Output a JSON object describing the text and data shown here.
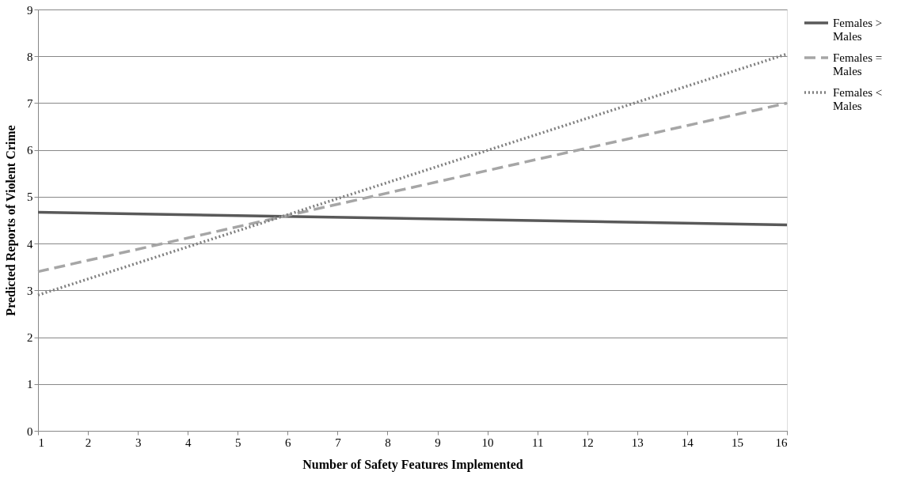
{
  "chart_data": {
    "type": "line",
    "xlabel": "Number of Safety Features Implemented",
    "ylabel": "Predicted Reports of Violent Crime",
    "x": [
      1,
      16
    ],
    "xlim": [
      1,
      16
    ],
    "xticks": [
      1,
      2,
      3,
      4,
      5,
      6,
      7,
      8,
      9,
      10,
      11,
      12,
      13,
      14,
      15,
      16
    ],
    "ylim": [
      0,
      9
    ],
    "yticks": [
      0,
      1,
      2,
      3,
      4,
      5,
      6,
      7,
      8,
      9
    ],
    "grid": "y",
    "legend": "right",
    "marker": "none",
    "series": [
      {
        "name": "Females > Males",
        "color": "#595959",
        "line_style": "solid",
        "values": [
          4.67,
          4.4
        ]
      },
      {
        "name": "Females = Males",
        "color": "#a6a6a6",
        "line_style": "dashed",
        "values": [
          3.4,
          7.0
        ]
      },
      {
        "name": "Females < Males",
        "color": "#7f7f7f",
        "line_style": "dotted",
        "values": [
          2.9,
          8.05
        ]
      }
    ]
  }
}
